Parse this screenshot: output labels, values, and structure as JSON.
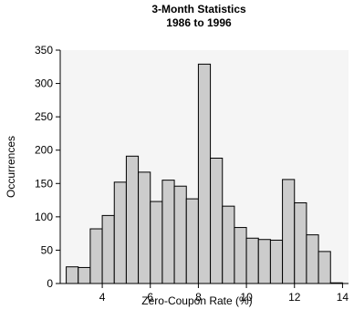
{
  "chart_data": {
    "type": "bar",
    "title": "3-Month Statistics",
    "subtitle": "1986 to 1996",
    "xlabel": "Zero-Coupon Rate (%)",
    "ylabel": "Occurrences",
    "bin_width": 0.5,
    "bin_starts": [
      2.5,
      3.0,
      3.5,
      4.0,
      4.5,
      5.0,
      5.5,
      6.0,
      6.5,
      7.0,
      7.5,
      8.0,
      8.5,
      9.0,
      9.5,
      10.0,
      10.5,
      11.0,
      11.5,
      12.0,
      12.5,
      13.0,
      13.5
    ],
    "values": [
      25,
      24,
      82,
      102,
      152,
      191,
      167,
      123,
      155,
      146,
      127,
      329,
      188,
      116,
      84,
      68,
      66,
      65,
      156,
      121,
      73,
      48,
      1
    ],
    "xlim": [
      2.25,
      14.25
    ],
    "ylim": [
      0,
      350
    ],
    "x_ticks": [
      "4",
      "6",
      "8",
      "10",
      "12",
      "14"
    ],
    "y_ticks": [
      "0",
      "50",
      "100",
      "150",
      "200",
      "250",
      "300",
      "350"
    ],
    "bar_color": "#cccccc",
    "plot_background": "#f5f5f5",
    "grid": false,
    "legend": "none"
  }
}
